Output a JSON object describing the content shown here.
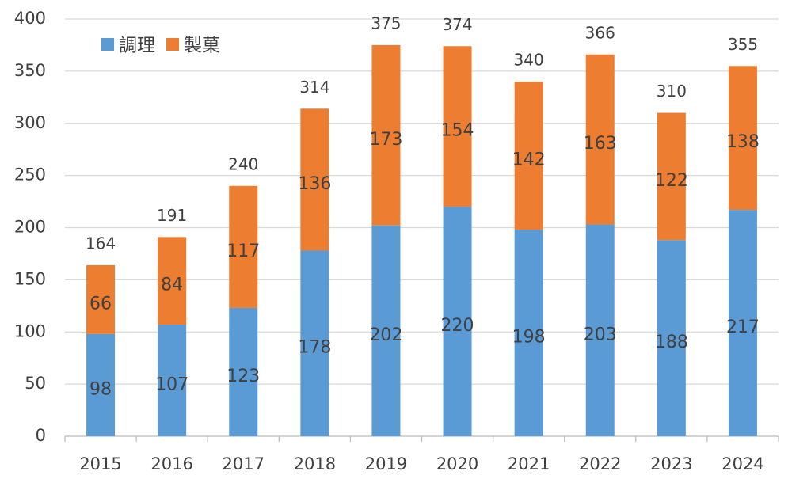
{
  "chart_data": {
    "type": "stacked_bar",
    "categories": [
      "2015",
      "2016",
      "2017",
      "2018",
      "2019",
      "2020",
      "2021",
      "2022",
      "2023",
      "2024"
    ],
    "series": [
      {
        "name": "調理",
        "color": "#5b9bd5",
        "values": [
          98,
          107,
          123,
          178,
          202,
          220,
          198,
          203,
          188,
          217
        ]
      },
      {
        "name": "製菓",
        "color": "#ed7d31",
        "values": [
          66,
          84,
          117,
          136,
          173,
          154,
          142,
          163,
          122,
          138
        ]
      }
    ],
    "totals": [
      164,
      191,
      240,
      314,
      375,
      374,
      340,
      366,
      310,
      355
    ],
    "ylim": [
      0,
      400
    ],
    "yticks": [
      0,
      50,
      100,
      150,
      200,
      250,
      300,
      350,
      400
    ],
    "grid": true,
    "legend": "top-left"
  }
}
